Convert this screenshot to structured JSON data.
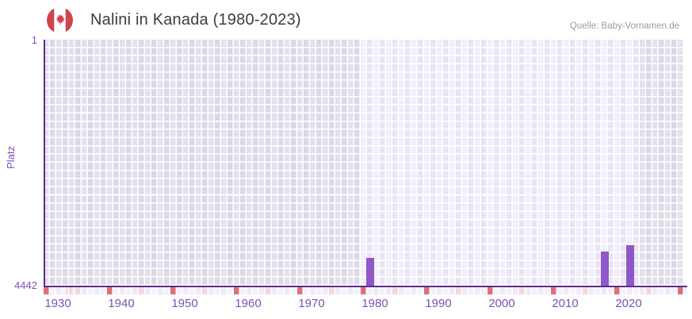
{
  "header": {
    "title": "Nalini in Kanada (1980-2023)",
    "source": "Quelle: Baby-Vornamen.de"
  },
  "chart_data": {
    "type": "bar",
    "title": "Nalini in Kanada (1980-2023)",
    "ylabel": "Platz",
    "xlabel": "",
    "y_axis": {
      "top_tick": "1",
      "bottom_tick": "4442",
      "min": 1,
      "max": 4442,
      "inverted": true
    },
    "x_axis": {
      "tick_labels": [
        "1930",
        "1940",
        "1950",
        "1960",
        "1970",
        "1980",
        "1990",
        "2000",
        "2010",
        "2020"
      ],
      "visible_range_start": 1930,
      "visible_range_end": 2030,
      "data_period_start": 1980,
      "data_period_end": 2023
    },
    "series": [
      {
        "name": "Platz",
        "points": [
          {
            "year": 1981,
            "rank": 3936
          },
          {
            "year": 2018,
            "rank": 3821
          },
          {
            "year": 2022,
            "rank": 3715
          }
        ]
      }
    ],
    "legend": "none",
    "grid": "checkerboard",
    "colors": {
      "bar": "#8f57c7",
      "axis": "#5b2d90",
      "tick_label": "#7a52b5",
      "grid_in_range_a": "#f2eefa",
      "grid_in_range_b": "#e9e4f4",
      "grid_out_of_range_a": "#e4e0ec",
      "grid_out_of_range_b": "#ddd8e6",
      "decade_marker": "#df6e7b",
      "half_decade_marker": "#f3d7e4",
      "flag_red": "#d2434b",
      "title_text": "#3d3d3d",
      "source_text": "#9b9b9b"
    }
  }
}
